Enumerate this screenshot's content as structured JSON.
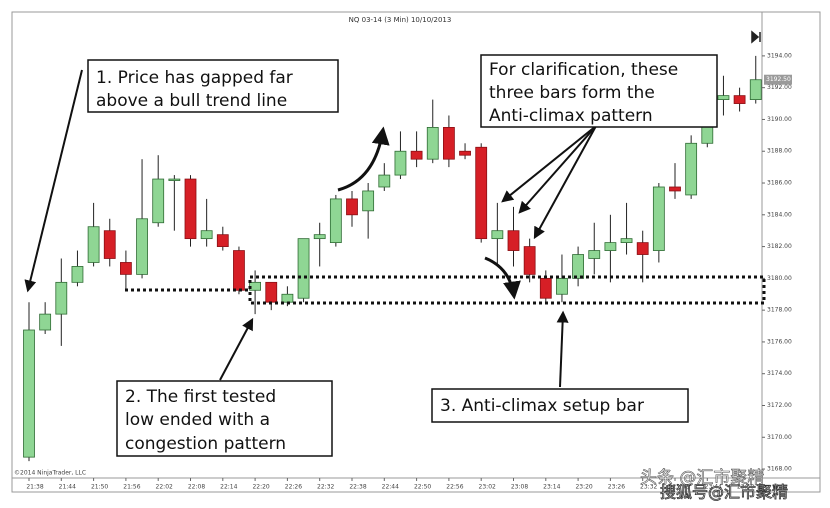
{
  "chart_data": {
    "type": "candlestick",
    "title": "NQ 03-14 (3 Min) 10/10/2013",
    "copyright": "©2014 NinjaTrader, LLC",
    "categories": [
      "21:38",
      null,
      "21:44",
      null,
      "21:50",
      null,
      "21:56",
      null,
      "22:02",
      null,
      "22:08",
      null,
      "22:14",
      null,
      "22:20",
      null,
      "22:26",
      null,
      "22:32",
      null,
      "22:38",
      null,
      "22:44",
      null,
      "22:50",
      null,
      "22:56",
      null,
      "23:02",
      null,
      "23:08",
      null,
      "23:14",
      null,
      "23:20",
      null,
      "23:26",
      null,
      "23:32",
      null,
      "23:38",
      null,
      "23:44",
      null,
      "23:50",
      null
    ],
    "open": [
      3168.75,
      3176.75,
      3177.75,
      3179.75,
      3181.0,
      3183.0,
      3181.0,
      3180.25,
      3183.5,
      3186.25,
      3186.25,
      3182.5,
      3182.75,
      3181.75,
      3179.25,
      3179.75,
      3178.5,
      3178.75,
      3182.5,
      3182.25,
      3185.0,
      3184.25,
      3185.75,
      3186.5,
      3188.0,
      3187.5,
      3189.5,
      3188.0,
      3188.25,
      3182.5,
      3183.0,
      3182.0,
      3180.0,
      3179.0,
      3180.0,
      3181.25,
      3181.75,
      3182.25,
      3182.25,
      3181.75,
      3185.75,
      3185.25,
      3188.5,
      3191.25,
      3191.5,
      3191.25
    ],
    "high": [
      3178.5,
      3178.5,
      3181.25,
      3181.75,
      3184.75,
      3183.75,
      3181.75,
      3187.5,
      3187.75,
      3186.5,
      3186.5,
      3185.0,
      3183.25,
      3182.0,
      3180.5,
      3179.75,
      3179.5,
      3182.5,
      3183.5,
      3185.25,
      3185.5,
      3186.0,
      3187.25,
      3189.25,
      3189.25,
      3191.25,
      3190.25,
      3188.5,
      3188.5,
      3184.75,
      3184.5,
      3182.5,
      3180.5,
      3181.5,
      3182.0,
      3183.5,
      3184.0,
      3184.75,
      3183.0,
      3186.0,
      3187.25,
      3189.0,
      3192.0,
      3192.75,
      3192.0,
      3194.0
    ],
    "low": [
      3168.5,
      3176.5,
      3175.75,
      3179.5,
      3180.75,
      3180.75,
      3179.25,
      3180.0,
      3183.25,
      3183.0,
      3182.0,
      3182.0,
      3181.75,
      3179.0,
      3177.75,
      3178.0,
      3178.25,
      3178.5,
      3180.75,
      3182.0,
      3183.25,
      3182.5,
      3185.5,
      3186.25,
      3187.0,
      3187.25,
      3187.0,
      3187.5,
      3182.25,
      3180.75,
      3180.75,
      3179.75,
      3178.5,
      3178.5,
      3179.5,
      3180.25,
      3179.75,
      3181.5,
      3179.75,
      3181.0,
      3185.0,
      3185.0,
      3188.25,
      3190.25,
      3190.5,
      3191.0
    ],
    "close": [
      3176.75,
      3177.75,
      3179.75,
      3180.75,
      3183.25,
      3181.25,
      3180.25,
      3183.75,
      3186.25,
      3186.25,
      3182.5,
      3183.0,
      3182.0,
      3179.25,
      3179.75,
      3178.5,
      3179.0,
      3182.5,
      3182.75,
      3185.0,
      3184.0,
      3185.5,
      3186.5,
      3188.0,
      3187.5,
      3189.5,
      3187.5,
      3187.75,
      3182.5,
      3183.0,
      3181.75,
      3180.25,
      3178.75,
      3180.0,
      3181.5,
      3181.75,
      3182.25,
      3182.5,
      3181.5,
      3185.75,
      3185.5,
      3188.5,
      3191.25,
      3191.5,
      3191.0,
      3192.5
    ],
    "up_color": "#8fd694",
    "down_color": "#d61f26",
    "ylim": [
      3167.5,
      3195
    ],
    "yticks": [
      {
        "value": 3168,
        "label": "3168.00"
      },
      {
        "value": 3170,
        "label": "3170.00"
      },
      {
        "value": 3172,
        "label": "3172.00"
      },
      {
        "value": 3174,
        "label": "3174.00"
      },
      {
        "value": 3176,
        "label": "3176.00"
      },
      {
        "value": 3178,
        "label": "3178.00"
      },
      {
        "value": 3180,
        "label": "3180.00"
      },
      {
        "value": 3182,
        "label": "3182.00"
      },
      {
        "value": 3184,
        "label": "3184.00"
      },
      {
        "value": 3186,
        "label": "3186.00"
      },
      {
        "value": 3188,
        "label": "3188.00"
      },
      {
        "value": 3190,
        "label": "3190.00"
      },
      {
        "value": 3192,
        "label": "3192.00"
      },
      {
        "value": 3194,
        "label": "3194.00"
      }
    ],
    "last_price": {
      "value": 3192.5,
      "label": "3192.50"
    },
    "annotations": [
      {
        "lines": [
          "1. Price has gapped far",
          "above a bull trend line"
        ]
      },
      {
        "lines": [
          "2. The first tested",
          "low ended with a",
          "congestion pattern"
        ]
      },
      {
        "lines": [
          "3. Anti-climax setup bar"
        ]
      },
      {
        "lines": [
          "For clarification, these",
          "three bars form the",
          "Anti-climax pattern"
        ]
      }
    ],
    "watermarks": [
      "头条 @汇市聚精",
      "搜狐号@汇市聚精"
    ]
  }
}
